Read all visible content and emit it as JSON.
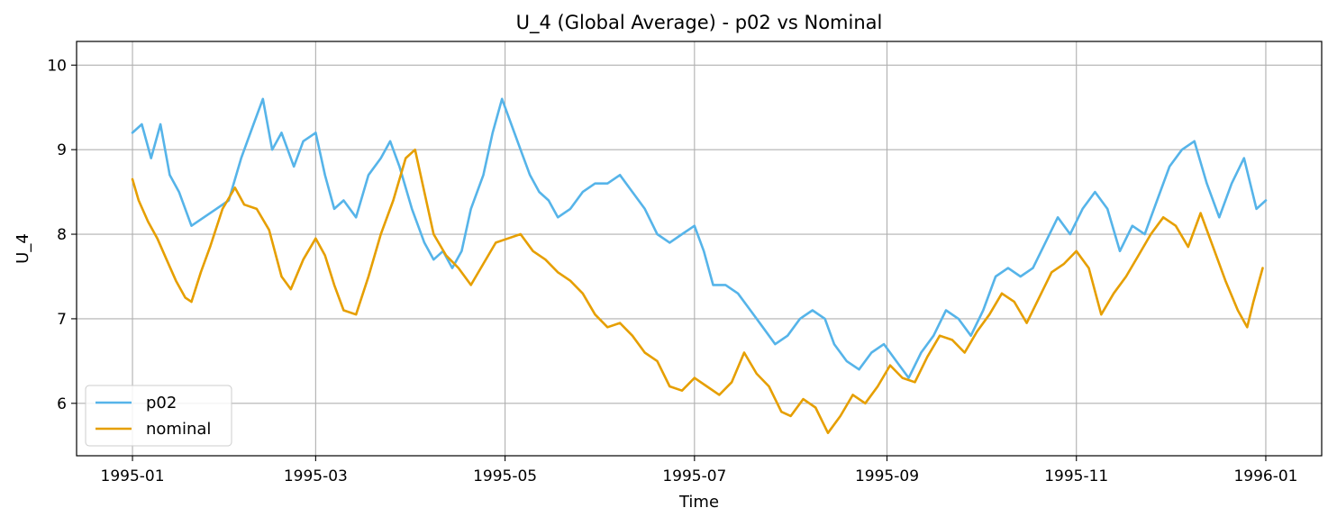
{
  "chart_data": {
    "type": "line",
    "title": "U_4 (Global Average) - p02 vs Nominal",
    "xlabel": "Time",
    "ylabel": "U_4",
    "x_range": [
      "1994-12-14",
      "1996-01-19"
    ],
    "ylim": [
      5.38,
      10.28
    ],
    "yticks": [
      6,
      7,
      8,
      9,
      10
    ],
    "xticks": [
      "1995-01",
      "1995-03",
      "1995-05",
      "1995-07",
      "1995-09",
      "1995-11",
      "1996-01"
    ],
    "grid": true,
    "legend_position": "lower-left",
    "colors": {
      "p02": "#56b4e9",
      "nominal": "#e69f00"
    },
    "series": [
      {
        "name": "p02",
        "color": "#56b4e9",
        "points": [
          [
            "1995-01-01",
            9.2
          ],
          [
            "1995-01-04",
            9.3
          ],
          [
            "1995-01-07",
            8.9
          ],
          [
            "1995-01-10",
            9.3
          ],
          [
            "1995-01-13",
            8.7
          ],
          [
            "1995-01-16",
            8.5
          ],
          [
            "1995-01-20",
            8.1
          ],
          [
            "1995-01-24",
            8.2
          ],
          [
            "1995-01-28",
            8.3
          ],
          [
            "1995-02-01",
            8.4
          ],
          [
            "1995-02-05",
            8.9
          ],
          [
            "1995-02-09",
            9.3
          ],
          [
            "1995-02-12",
            9.6
          ],
          [
            "1995-02-15",
            9.0
          ],
          [
            "1995-02-18",
            9.2
          ],
          [
            "1995-02-22",
            8.8
          ],
          [
            "1995-02-25",
            9.1
          ],
          [
            "1995-03-01",
            9.2
          ],
          [
            "1995-03-04",
            8.7
          ],
          [
            "1995-03-07",
            8.3
          ],
          [
            "1995-03-10",
            8.4
          ],
          [
            "1995-03-14",
            8.2
          ],
          [
            "1995-03-18",
            8.7
          ],
          [
            "1995-03-22",
            8.9
          ],
          [
            "1995-03-25",
            9.1
          ],
          [
            "1995-03-28",
            8.8
          ],
          [
            "1995-04-01",
            8.3
          ],
          [
            "1995-04-05",
            7.9
          ],
          [
            "1995-04-08",
            7.7
          ],
          [
            "1995-04-11",
            7.8
          ],
          [
            "1995-04-14",
            7.6
          ],
          [
            "1995-04-17",
            7.8
          ],
          [
            "1995-04-20",
            8.3
          ],
          [
            "1995-04-24",
            8.7
          ],
          [
            "1995-04-27",
            9.2
          ],
          [
            "1995-04-30",
            9.6
          ],
          [
            "1995-05-03",
            9.3
          ],
          [
            "1995-05-06",
            9.0
          ],
          [
            "1995-05-09",
            8.7
          ],
          [
            "1995-05-12",
            8.5
          ],
          [
            "1995-05-15",
            8.4
          ],
          [
            "1995-05-18",
            8.2
          ],
          [
            "1995-05-22",
            8.3
          ],
          [
            "1995-05-26",
            8.5
          ],
          [
            "1995-05-30",
            8.6
          ],
          [
            "1995-06-03",
            8.6
          ],
          [
            "1995-06-07",
            8.7
          ],
          [
            "1995-06-11",
            8.5
          ],
          [
            "1995-06-15",
            8.3
          ],
          [
            "1995-06-19",
            8.0
          ],
          [
            "1995-06-23",
            7.9
          ],
          [
            "1995-06-27",
            8.0
          ],
          [
            "1995-07-01",
            8.1
          ],
          [
            "1995-07-04",
            7.8
          ],
          [
            "1995-07-07",
            7.4
          ],
          [
            "1995-07-11",
            7.4
          ],
          [
            "1995-07-15",
            7.3
          ],
          [
            "1995-07-19",
            7.1
          ],
          [
            "1995-07-23",
            6.9
          ],
          [
            "1995-07-27",
            6.7
          ],
          [
            "1995-07-31",
            6.8
          ],
          [
            "1995-08-04",
            7.0
          ],
          [
            "1995-08-08",
            7.1
          ],
          [
            "1995-08-12",
            7.0
          ],
          [
            "1995-08-15",
            6.7
          ],
          [
            "1995-08-19",
            6.5
          ],
          [
            "1995-08-23",
            6.4
          ],
          [
            "1995-08-27",
            6.6
          ],
          [
            "1995-08-31",
            6.7
          ],
          [
            "1995-09-04",
            6.5
          ],
          [
            "1995-09-08",
            6.3
          ],
          [
            "1995-09-12",
            6.6
          ],
          [
            "1995-09-16",
            6.8
          ],
          [
            "1995-09-20",
            7.1
          ],
          [
            "1995-09-24",
            7.0
          ],
          [
            "1995-09-28",
            6.8
          ],
          [
            "1995-10-02",
            7.1
          ],
          [
            "1995-10-06",
            7.5
          ],
          [
            "1995-10-10",
            7.6
          ],
          [
            "1995-10-14",
            7.5
          ],
          [
            "1995-10-18",
            7.6
          ],
          [
            "1995-10-22",
            7.9
          ],
          [
            "1995-10-26",
            8.2
          ],
          [
            "1995-10-30",
            8.0
          ],
          [
            "1995-11-03",
            8.3
          ],
          [
            "1995-11-07",
            8.5
          ],
          [
            "1995-11-11",
            8.3
          ],
          [
            "1995-11-15",
            7.8
          ],
          [
            "1995-11-19",
            8.1
          ],
          [
            "1995-11-23",
            8.0
          ],
          [
            "1995-11-27",
            8.4
          ],
          [
            "1995-12-01",
            8.8
          ],
          [
            "1995-12-05",
            9.0
          ],
          [
            "1995-12-09",
            9.1
          ],
          [
            "1995-12-13",
            8.6
          ],
          [
            "1995-12-17",
            8.2
          ],
          [
            "1995-12-21",
            8.6
          ],
          [
            "1995-12-25",
            8.9
          ],
          [
            "1995-12-29",
            8.3
          ],
          [
            "1996-01-01",
            8.4
          ]
        ]
      },
      {
        "name": "nominal",
        "color": "#e69f00",
        "points": [
          [
            "1995-01-01",
            8.65
          ],
          [
            "1995-01-03",
            8.4
          ],
          [
            "1995-01-06",
            8.15
          ],
          [
            "1995-01-09",
            7.95
          ],
          [
            "1995-01-12",
            7.7
          ],
          [
            "1995-01-15",
            7.45
          ],
          [
            "1995-01-18",
            7.25
          ],
          [
            "1995-01-20",
            7.2
          ],
          [
            "1995-01-23",
            7.55
          ],
          [
            "1995-01-26",
            7.85
          ],
          [
            "1995-01-30",
            8.3
          ],
          [
            "1995-02-03",
            8.55
          ],
          [
            "1995-02-06",
            8.35
          ],
          [
            "1995-02-10",
            8.3
          ],
          [
            "1995-02-14",
            8.05
          ],
          [
            "1995-02-18",
            7.5
          ],
          [
            "1995-02-21",
            7.35
          ],
          [
            "1995-02-25",
            7.7
          ],
          [
            "1995-03-01",
            7.95
          ],
          [
            "1995-03-04",
            7.75
          ],
          [
            "1995-03-07",
            7.4
          ],
          [
            "1995-03-10",
            7.1
          ],
          [
            "1995-03-14",
            7.05
          ],
          [
            "1995-03-18",
            7.5
          ],
          [
            "1995-03-22",
            8.0
          ],
          [
            "1995-03-26",
            8.4
          ],
          [
            "1995-03-30",
            8.9
          ],
          [
            "1995-04-02",
            9.0
          ],
          [
            "1995-04-05",
            8.5
          ],
          [
            "1995-04-08",
            8.0
          ],
          [
            "1995-04-12",
            7.75
          ],
          [
            "1995-04-16",
            7.6
          ],
          [
            "1995-04-20",
            7.4
          ],
          [
            "1995-04-24",
            7.65
          ],
          [
            "1995-04-28",
            7.9
          ],
          [
            "1995-05-02",
            7.95
          ],
          [
            "1995-05-06",
            8.0
          ],
          [
            "1995-05-10",
            7.8
          ],
          [
            "1995-05-14",
            7.7
          ],
          [
            "1995-05-18",
            7.55
          ],
          [
            "1995-05-22",
            7.45
          ],
          [
            "1995-05-26",
            7.3
          ],
          [
            "1995-05-30",
            7.05
          ],
          [
            "1995-06-03",
            6.9
          ],
          [
            "1995-06-07",
            6.95
          ],
          [
            "1995-06-11",
            6.8
          ],
          [
            "1995-06-15",
            6.6
          ],
          [
            "1995-06-19",
            6.5
          ],
          [
            "1995-06-23",
            6.2
          ],
          [
            "1995-06-27",
            6.15
          ],
          [
            "1995-07-01",
            6.3
          ],
          [
            "1995-07-05",
            6.2
          ],
          [
            "1995-07-09",
            6.1
          ],
          [
            "1995-07-13",
            6.25
          ],
          [
            "1995-07-17",
            6.6
          ],
          [
            "1995-07-21",
            6.35
          ],
          [
            "1995-07-25",
            6.2
          ],
          [
            "1995-07-29",
            5.9
          ],
          [
            "1995-08-01",
            5.85
          ],
          [
            "1995-08-05",
            6.05
          ],
          [
            "1995-08-09",
            5.95
          ],
          [
            "1995-08-13",
            5.65
          ],
          [
            "1995-08-17",
            5.85
          ],
          [
            "1995-08-21",
            6.1
          ],
          [
            "1995-08-25",
            6.0
          ],
          [
            "1995-08-29",
            6.2
          ],
          [
            "1995-09-02",
            6.45
          ],
          [
            "1995-09-06",
            6.3
          ],
          [
            "1995-09-10",
            6.25
          ],
          [
            "1995-09-14",
            6.55
          ],
          [
            "1995-09-18",
            6.8
          ],
          [
            "1995-09-22",
            6.75
          ],
          [
            "1995-09-26",
            6.6
          ],
          [
            "1995-09-30",
            6.85
          ],
          [
            "1995-10-04",
            7.05
          ],
          [
            "1995-10-08",
            7.3
          ],
          [
            "1995-10-12",
            7.2
          ],
          [
            "1995-10-16",
            6.95
          ],
          [
            "1995-10-20",
            7.25
          ],
          [
            "1995-10-24",
            7.55
          ],
          [
            "1995-10-28",
            7.65
          ],
          [
            "1995-11-01",
            7.8
          ],
          [
            "1995-11-05",
            7.6
          ],
          [
            "1995-11-09",
            7.05
          ],
          [
            "1995-11-13",
            7.3
          ],
          [
            "1995-11-17",
            7.5
          ],
          [
            "1995-11-21",
            7.75
          ],
          [
            "1995-11-25",
            8.0
          ],
          [
            "1995-11-29",
            8.2
          ],
          [
            "1995-12-03",
            8.1
          ],
          [
            "1995-12-07",
            7.85
          ],
          [
            "1995-12-11",
            8.25
          ],
          [
            "1995-12-15",
            7.85
          ],
          [
            "1995-12-19",
            7.45
          ],
          [
            "1995-12-23",
            7.1
          ],
          [
            "1995-12-26",
            6.9
          ],
          [
            "1995-12-28",
            7.2
          ],
          [
            "1995-12-31",
            7.6
          ]
        ]
      }
    ]
  }
}
